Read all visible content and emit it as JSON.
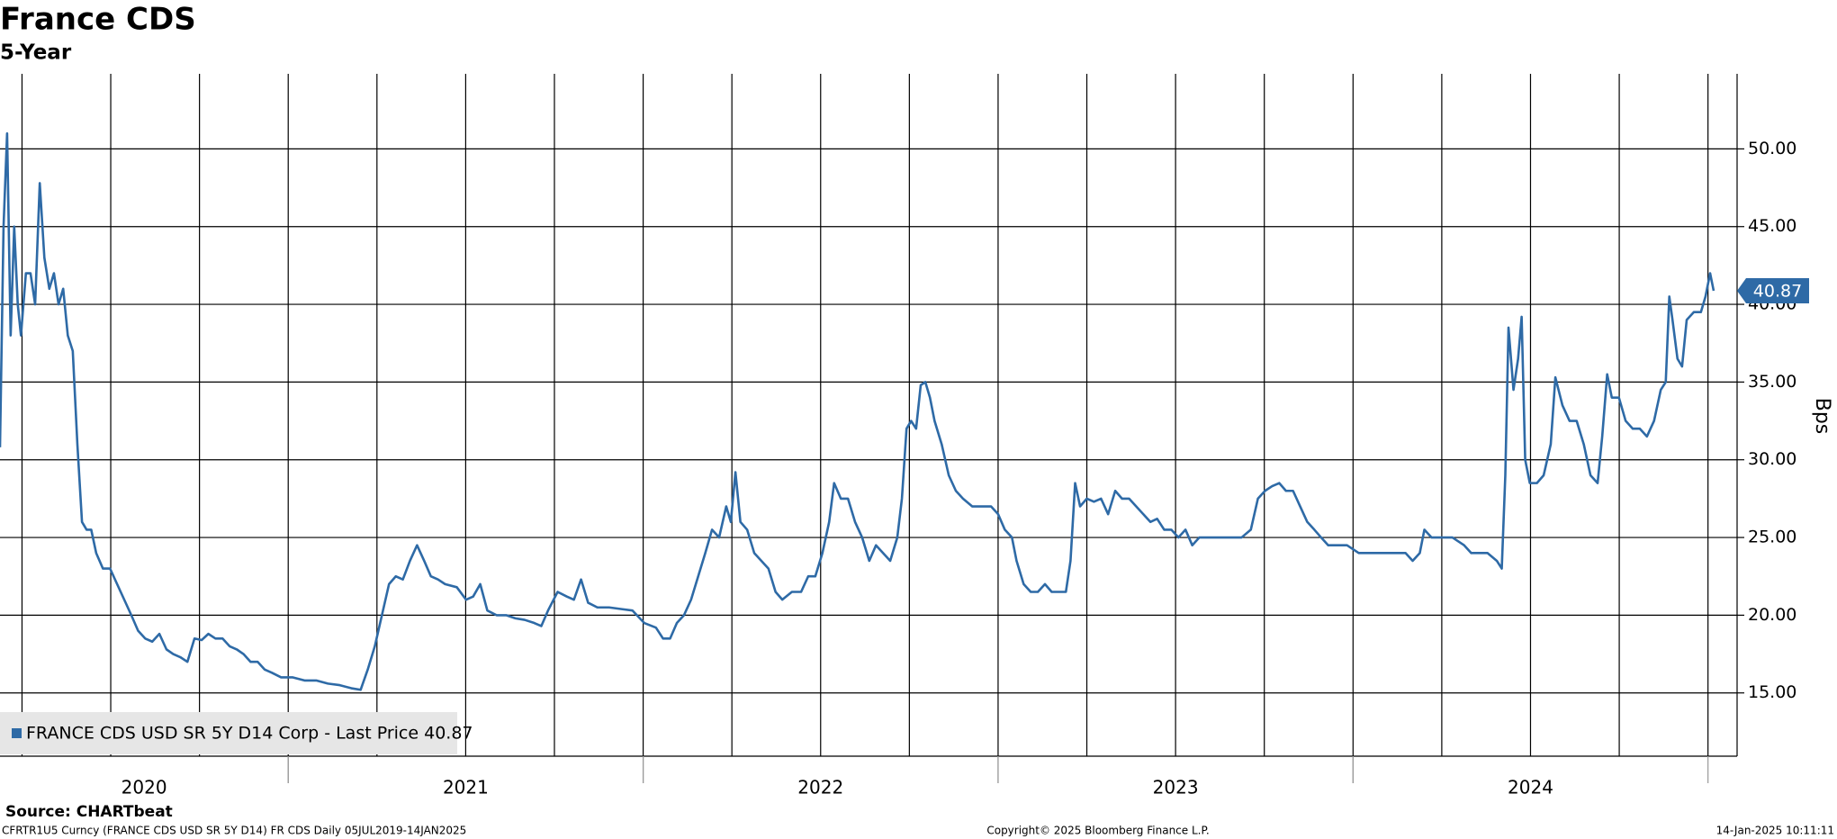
{
  "chart_data": {
    "type": "line",
    "title": "France CDS",
    "subtitle": "5-Year",
    "y_axis_label": "Bps",
    "source": "Source: CHARTbeat",
    "footer_left": "CFRTR1U5 Curncy (FRANCE CDS USD SR 5Y D14) FR CDS  Daily 05JUL2019-14JAN2025",
    "footer_center": "Copyright© 2025 Bloomberg Finance L.P.",
    "footer_right": "14-Jan-2025 10:11:11",
    "xlim": [
      2020.188,
      2025.082
    ],
    "xticks": [
      2020,
      2021,
      2022,
      2023,
      2024
    ],
    "grid_x": "quarterly",
    "ylim": [
      10.93,
      54.83
    ],
    "yticks": [
      {
        "value": 15,
        "label": "15.00"
      },
      {
        "value": 20,
        "label": "20.00"
      },
      {
        "value": 25,
        "label": "25.00"
      },
      {
        "value": 30,
        "label": "30.00"
      },
      {
        "value": 35,
        "label": "35.00"
      },
      {
        "value": 40,
        "label": "40.00"
      },
      {
        "value": 45,
        "label": "45.00"
      },
      {
        "value": 50,
        "label": "50.00"
      }
    ],
    "grid": true,
    "legend": "bottom-left",
    "x": [
      2020.188,
      2020.198,
      2020.208,
      2020.218,
      2020.228,
      2020.238,
      2020.247,
      2020.261,
      2020.274,
      2020.287,
      2020.3,
      2020.313,
      2020.327,
      2020.34,
      2020.353,
      2020.366,
      2020.379,
      2020.393,
      2020.406,
      2020.419,
      2020.432,
      2020.445,
      2020.459,
      2020.478,
      2020.498,
      2020.518,
      2020.538,
      2020.558,
      2020.577,
      2020.597,
      2020.617,
      2020.637,
      2020.657,
      2020.676,
      2020.696,
      2020.716,
      2020.736,
      2020.756,
      2020.775,
      2020.795,
      2020.815,
      2020.835,
      2020.855,
      2020.874,
      2020.894,
      2020.914,
      2020.934,
      2020.954,
      2020.98,
      2021.013,
      2021.046,
      2021.079,
      2021.112,
      2021.145,
      2021.178,
      2021.204,
      2021.224,
      2021.244,
      2021.264,
      2021.284,
      2021.303,
      2021.323,
      2021.343,
      2021.363,
      2021.383,
      2021.402,
      2021.422,
      2021.442,
      2021.475,
      2021.501,
      2021.521,
      2021.541,
      2021.561,
      2021.587,
      2021.614,
      2021.64,
      2021.666,
      2021.693,
      2021.713,
      2021.732,
      2021.759,
      2021.785,
      2021.805,
      2021.825,
      2021.845,
      2021.871,
      2021.904,
      2021.937,
      2021.97,
      2022.003,
      2022.036,
      2022.056,
      2022.076,
      2022.095,
      2022.115,
      2022.135,
      2022.155,
      2022.175,
      2022.194,
      2022.214,
      2022.234,
      2022.247,
      2022.26,
      2022.274,
      2022.293,
      2022.313,
      2022.333,
      2022.353,
      2022.373,
      2022.392,
      2022.419,
      2022.445,
      2022.465,
      2022.485,
      2022.505,
      2022.524,
      2022.538,
      2022.557,
      2022.577,
      2022.597,
      2022.617,
      2022.637,
      2022.656,
      2022.676,
      2022.696,
      2022.716,
      2022.729,
      2022.742,
      2022.755,
      2022.769,
      2022.782,
      2022.795,
      2022.808,
      2022.821,
      2022.841,
      2022.861,
      2022.881,
      2022.901,
      2022.927,
      2022.953,
      2022.98,
      2023.0,
      2023.019,
      2023.039,
      2023.052,
      2023.072,
      2023.092,
      2023.112,
      2023.132,
      2023.151,
      2023.171,
      2023.191,
      2023.204,
      2023.217,
      2023.231,
      2023.25,
      2023.27,
      2023.29,
      2023.31,
      2023.33,
      2023.349,
      2023.369,
      2023.389,
      2023.409,
      2023.429,
      2023.448,
      2023.468,
      2023.488,
      2023.508,
      2023.528,
      2023.547,
      2023.567,
      2023.587,
      2023.62,
      2023.653,
      2023.686,
      2023.712,
      2023.732,
      2023.752,
      2023.772,
      2023.792,
      2023.811,
      2023.831,
      2023.851,
      2023.871,
      2023.891,
      2023.91,
      2023.93,
      2023.95,
      2023.983,
      2024.016,
      2024.049,
      2024.082,
      2024.115,
      2024.148,
      2024.168,
      2024.188,
      2024.201,
      2024.221,
      2024.247,
      2024.28,
      2024.313,
      2024.333,
      2024.353,
      2024.379,
      2024.405,
      2024.419,
      2024.429,
      2024.438,
      2024.452,
      2024.465,
      2024.475,
      2024.485,
      2024.498,
      2024.518,
      2024.537,
      2024.557,
      2024.57,
      2024.59,
      2024.61,
      2024.63,
      2024.65,
      2024.669,
      2024.689,
      2024.702,
      2024.716,
      2024.729,
      2024.749,
      2024.768,
      2024.788,
      2024.808,
      2024.828,
      2024.848,
      2024.867,
      2024.881,
      2024.891,
      2024.9,
      2024.914,
      2024.927,
      2024.94,
      2024.96,
      2024.98,
      2024.993,
      2025.006,
      2025.016
    ],
    "series": [
      {
        "name": "FRANCE CDS USD SR 5Y D14 Corp - Last Price 40.87",
        "color": "#2e6aa6",
        "values": [
          30.8,
          45,
          51,
          38,
          45,
          40,
          38,
          42,
          42,
          40,
          47.8,
          43,
          41,
          42,
          40,
          41,
          38,
          37,
          31,
          26,
          25.5,
          25.5,
          24,
          23,
          23,
          22,
          21,
          20,
          19,
          18.5,
          18.3,
          18.8,
          17.8,
          17.5,
          17.3,
          17,
          18.5,
          18.4,
          18.8,
          18.5,
          18.5,
          18,
          17.8,
          17.5,
          17,
          17,
          16.5,
          16.3,
          16,
          16,
          15.8,
          15.8,
          15.6,
          15.5,
          15.3,
          15.2,
          16.5,
          18,
          20,
          22,
          22.5,
          22.3,
          23.5,
          24.5,
          23.5,
          22.5,
          22.3,
          22,
          21.8,
          21,
          21.2,
          22,
          20.3,
          20,
          20,
          19.8,
          19.7,
          19.5,
          19.3,
          20.3,
          21.5,
          21.2,
          21,
          22.3,
          20.8,
          20.5,
          20.5,
          20.4,
          20.3,
          19.5,
          19.2,
          18.5,
          18.5,
          19.5,
          20,
          21,
          22.5,
          24,
          25.5,
          25,
          27,
          26,
          29.2,
          26,
          25.5,
          24,
          23.5,
          23,
          21.5,
          21,
          21.5,
          21.5,
          22.5,
          22.5,
          24,
          26,
          28.5,
          27.5,
          27.5,
          26,
          25,
          23.5,
          24.5,
          24,
          23.5,
          25,
          27.5,
          32,
          32.5,
          32,
          34.8,
          35,
          34,
          32.5,
          31,
          29,
          28,
          27.5,
          27,
          27,
          27,
          26.5,
          25.5,
          25,
          23.5,
          22,
          21.5,
          21.5,
          22,
          21.5,
          21.5,
          21.5,
          23.5,
          28.5,
          27,
          27.5,
          27.3,
          27.5,
          26.5,
          28,
          27.5,
          27.5,
          27,
          26.5,
          26,
          26.2,
          25.5,
          25.5,
          25,
          25.5,
          24.5,
          25,
          25,
          25,
          25,
          25,
          25.5,
          27.5,
          28,
          28.3,
          28.5,
          28,
          28,
          27,
          26,
          25.5,
          25,
          24.5,
          24.5,
          24.5,
          24,
          24,
          24,
          24,
          24,
          23.5,
          24,
          25.5,
          25,
          25,
          25,
          24.5,
          24,
          24,
          24,
          23.5,
          23,
          29,
          38.5,
          34.5,
          36.5,
          39.2,
          30,
          28.5,
          28.5,
          29,
          31,
          35.3,
          33.5,
          32.5,
          32.5,
          31,
          29,
          28.5,
          31.5,
          35.5,
          34,
          34,
          32.5,
          32,
          32,
          31.5,
          32.5,
          34.5,
          35,
          40.5,
          39,
          36.5,
          36,
          39,
          39.5,
          39.5,
          40.5,
          42,
          40.87
        ]
      }
    ]
  }
}
